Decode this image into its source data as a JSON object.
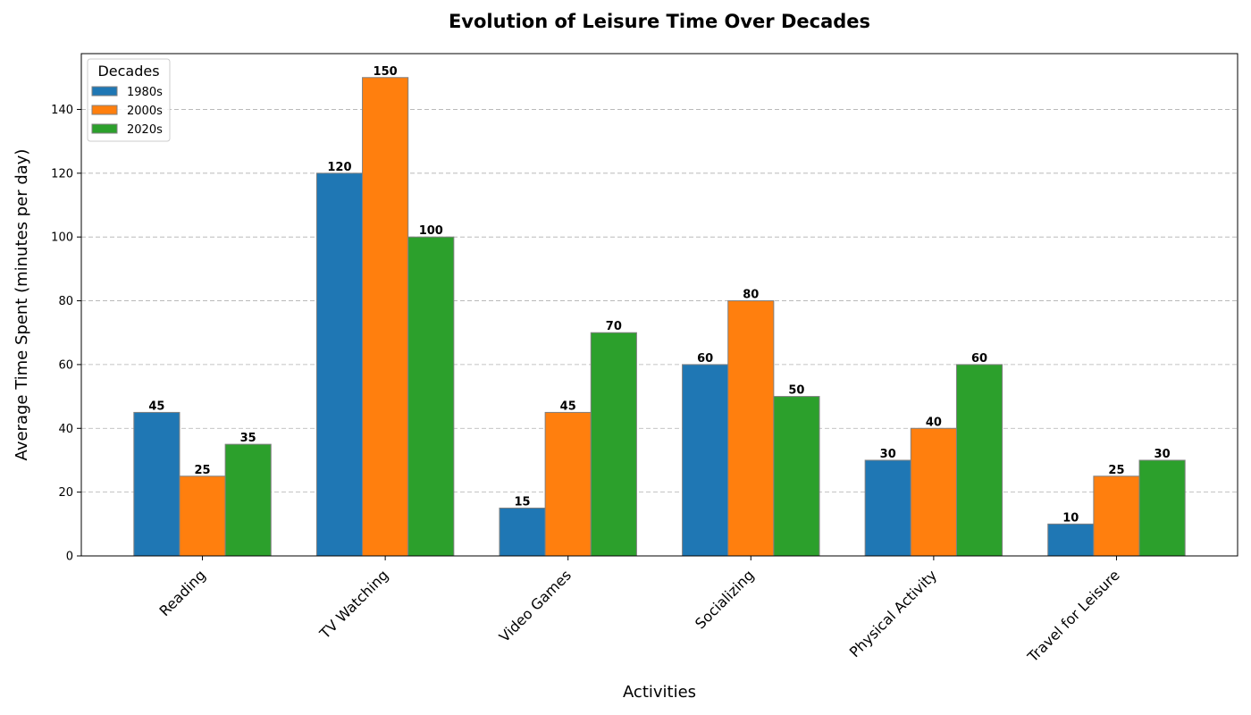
{
  "chart_data": {
    "type": "bar",
    "title": "Evolution of Leisure Time Over Decades",
    "xlabel": "Activities",
    "ylabel": "Average Time Spent (minutes per day)",
    "categories": [
      "Reading",
      "TV Watching",
      "Video Games",
      "Socializing",
      "Physical Activity",
      "Travel for Leisure"
    ],
    "series": [
      {
        "name": "1980s",
        "color": "#1f77b4",
        "values": [
          45,
          120,
          15,
          60,
          30,
          10
        ]
      },
      {
        "name": "2000s",
        "color": "#ff7f0e",
        "values": [
          25,
          150,
          45,
          80,
          40,
          25
        ]
      },
      {
        "name": "2020s",
        "color": "#2ca02c",
        "values": [
          35,
          100,
          70,
          50,
          60,
          30
        ]
      }
    ],
    "ylim": [
      0,
      157.5
    ],
    "yticks": [
      0,
      20,
      40,
      60,
      80,
      100,
      120,
      140
    ],
    "grid": "y-dashed",
    "legend": {
      "title": "Decades",
      "placement": "upper-left"
    }
  }
}
